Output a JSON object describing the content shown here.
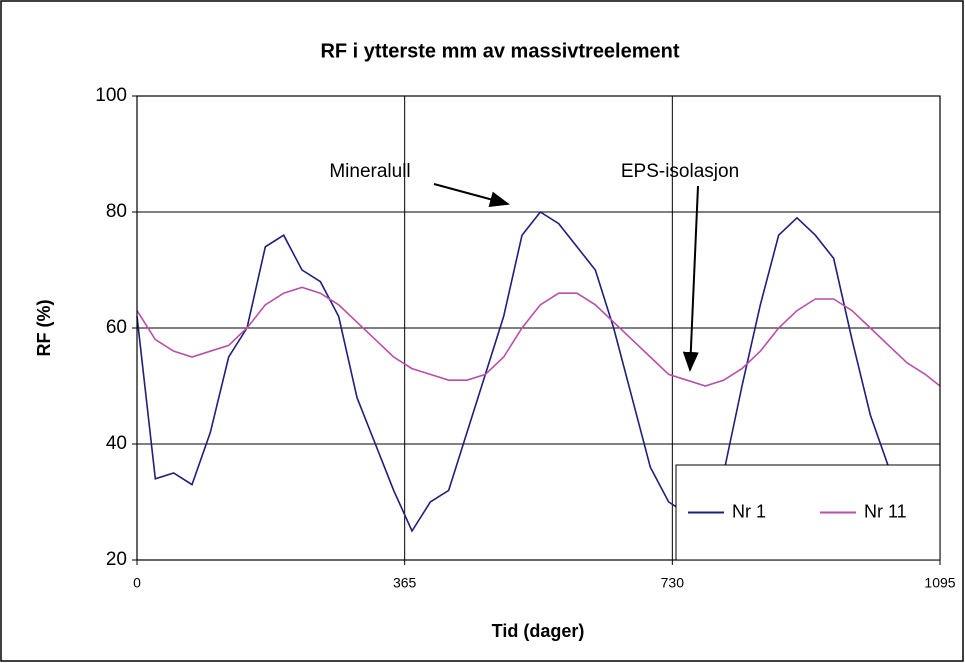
{
  "chart_data": {
    "type": "line",
    "title": "RF i ytterste mm av massivtreelement",
    "x_label": "Tid (dager)",
    "y_label": "RF (%)",
    "x": [
      0,
      25,
      50,
      75,
      100,
      125,
      150,
      175,
      200,
      225,
      250,
      275,
      300,
      325,
      350,
      375,
      400,
      425,
      450,
      475,
      500,
      525,
      550,
      575,
      600,
      625,
      650,
      675,
      700,
      725,
      750,
      775,
      800,
      825,
      850,
      875,
      900,
      925,
      950,
      975,
      1000,
      1025,
      1050,
      1075,
      1095
    ],
    "series": [
      {
        "name": "Nr 1",
        "color": "#1f1f7a",
        "values": [
          62,
          34,
          35,
          33,
          42,
          55,
          60,
          74,
          76,
          70,
          68,
          62,
          48,
          40,
          32,
          25,
          30,
          32,
          42,
          52,
          62,
          76,
          80,
          78,
          74,
          70,
          60,
          48,
          36,
          30,
          28,
          30,
          35,
          50,
          64,
          76,
          79,
          76,
          72,
          58,
          45,
          36,
          30,
          28,
          27
        ]
      },
      {
        "name": "Nr 11",
        "color": "#b84fa8",
        "values": [
          63,
          58,
          56,
          55,
          56,
          57,
          60,
          64,
          66,
          67,
          66,
          64,
          61,
          58,
          55,
          53,
          52,
          51,
          51,
          52,
          55,
          60,
          64,
          66,
          66,
          64,
          61,
          58,
          55,
          52,
          51,
          50,
          51,
          53,
          56,
          60,
          63,
          65,
          65,
          63,
          60,
          57,
          54,
          52,
          50
        ]
      }
    ],
    "xlim": [
      0,
      1095
    ],
    "xticks": [
      0,
      365,
      730,
      1095
    ],
    "ylim": [
      20,
      100
    ],
    "yticks": [
      20,
      40,
      60,
      80,
      100
    ],
    "grid": true,
    "legend": "lower-right",
    "annotations": [
      "Mineralull",
      "EPS-isolasjon"
    ]
  }
}
